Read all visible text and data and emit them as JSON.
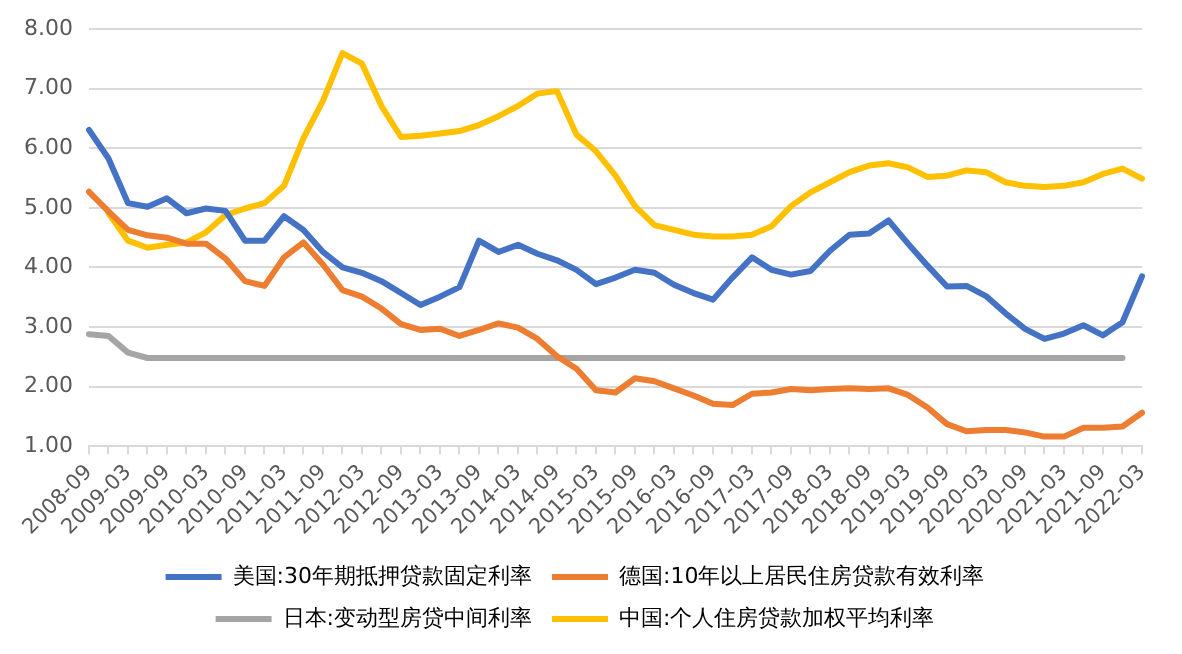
{
  "chart_data": {
    "type": "line",
    "categories": [
      "2008-09",
      null,
      "2009-03",
      null,
      "2009-09",
      null,
      "2010-03",
      null,
      "2010-09",
      null,
      "2011-03",
      null,
      "2011-09",
      null,
      "2012-03",
      null,
      "2012-09",
      null,
      "2013-03",
      null,
      "2013-09",
      null,
      "2014-03",
      null,
      "2014-09",
      null,
      "2015-03",
      null,
      "2015-09",
      null,
      "2016-03",
      null,
      "2016-09",
      null,
      "2017-03",
      null,
      "2017-09",
      null,
      "2018-03",
      null,
      "2018-09",
      null,
      "2019-03",
      null,
      "2019-09",
      null,
      "2020-03",
      null,
      "2020-09",
      null,
      "2021-03",
      null,
      "2021-09",
      null,
      "2022-03"
    ],
    "series": [
      {
        "name": "美国:30年期抵押贷款固定利率",
        "color": "#4472c4",
        "values": [
          6.31,
          5.83,
          5.08,
          5.02,
          5.16,
          4.91,
          4.99,
          4.95,
          4.45,
          4.45,
          4.86,
          4.63,
          4.26,
          4.0,
          3.91,
          3.77,
          3.57,
          3.37,
          3.51,
          3.67,
          4.45,
          4.26,
          4.38,
          4.23,
          4.12,
          3.96,
          3.72,
          3.83,
          3.96,
          3.91,
          3.71,
          3.57,
          3.46,
          3.83,
          4.17,
          3.96,
          3.88,
          3.94,
          4.28,
          4.55,
          4.57,
          4.79,
          4.4,
          4.03,
          3.68,
          3.69,
          3.52,
          3.23,
          2.97,
          2.8,
          2.89,
          3.03,
          2.86,
          3.08,
          3.85
        ]
      },
      {
        "name": "德国:10年以上居民住房贷款有效利率",
        "color": "#ed7d31",
        "values": [
          5.27,
          4.94,
          4.63,
          4.54,
          4.5,
          4.4,
          4.4,
          4.15,
          3.77,
          3.69,
          4.17,
          4.42,
          4.05,
          3.62,
          3.51,
          3.31,
          3.05,
          2.95,
          2.97,
          2.85,
          2.95,
          3.06,
          2.99,
          2.8,
          2.51,
          2.3,
          1.94,
          1.9,
          2.14,
          2.09,
          1.97,
          1.85,
          1.71,
          1.69,
          1.88,
          1.9,
          1.96,
          1.94,
          1.96,
          1.97,
          1.96,
          1.97,
          1.86,
          1.65,
          1.37,
          1.25,
          1.27,
          1.27,
          1.23,
          1.16,
          1.16,
          1.31,
          1.31,
          1.33,
          1.56
        ]
      },
      {
        "name": "日本:变动型房贷中间利率",
        "color": "#a5a5a5",
        "values": [
          2.88,
          2.85,
          2.57,
          2.48,
          2.48,
          2.48,
          2.48,
          2.48,
          2.48,
          2.48,
          2.48,
          2.48,
          2.48,
          2.48,
          2.48,
          2.48,
          2.48,
          2.48,
          2.48,
          2.48,
          2.48,
          2.48,
          2.48,
          2.48,
          2.48,
          2.48,
          2.48,
          2.48,
          2.48,
          2.48,
          2.48,
          2.48,
          2.48,
          2.48,
          2.48,
          2.48,
          2.48,
          2.48,
          2.48,
          2.48,
          2.48,
          2.48,
          2.48,
          2.48,
          2.48,
          2.48,
          2.48,
          2.48,
          2.48,
          2.48,
          2.48,
          2.48,
          2.48,
          2.48,
          null
        ]
      },
      {
        "name": "中国:个人住房贷款加权平均利率",
        "color": "#ffc000",
        "values": [
          null,
          4.91,
          4.45,
          4.33,
          4.38,
          4.42,
          4.59,
          4.88,
          4.99,
          5.08,
          5.37,
          6.17,
          6.8,
          7.6,
          7.42,
          6.71,
          6.19,
          6.21,
          6.25,
          6.29,
          6.39,
          6.54,
          6.71,
          6.92,
          6.96,
          6.23,
          5.95,
          5.54,
          5.03,
          4.71,
          4.63,
          4.55,
          4.52,
          4.52,
          4.55,
          4.69,
          5.03,
          5.26,
          5.43,
          5.6,
          5.71,
          5.75,
          5.68,
          5.52,
          5.54,
          5.63,
          5.6,
          5.43,
          5.37,
          5.35,
          5.37,
          5.43,
          5.57,
          5.66,
          5.49
        ]
      }
    ],
    "ylim": [
      1,
      8
    ],
    "yticks": [
      {
        "value": 1,
        "label": "1.00"
      },
      {
        "value": 2,
        "label": "2.00"
      },
      {
        "value": 3,
        "label": "3.00"
      },
      {
        "value": 4,
        "label": "4.00"
      },
      {
        "value": 5,
        "label": "5.00"
      },
      {
        "value": 6,
        "label": "6.00"
      },
      {
        "value": 7,
        "label": "7.00"
      },
      {
        "value": 8,
        "label": "8.00"
      }
    ],
    "grid": "y",
    "legend": "bottom",
    "marker": "none",
    "line_style": "solid"
  }
}
